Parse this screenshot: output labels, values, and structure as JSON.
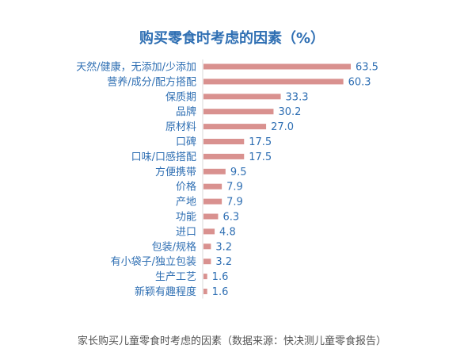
{
  "chart_data": {
    "type": "bar",
    "orientation": "horizontal",
    "title": "购买零食时考虑的因素（%）",
    "categories": [
      "天然/健康，无添加/少添加",
      "营养/成分/配方搭配",
      "保质期",
      "品牌",
      "原材料",
      "口碑",
      "口味/口感搭配",
      "方便携带",
      "价格",
      "产地",
      "功能",
      "进口",
      "包装/规格",
      "有小袋子/独立包装",
      "生产工艺",
      "新颖有趣程度"
    ],
    "values": [
      63.5,
      60.3,
      33.3,
      30.2,
      27.0,
      17.5,
      17.5,
      9.5,
      7.9,
      7.9,
      6.3,
      4.8,
      3.2,
      3.2,
      1.6,
      1.6
    ],
    "value_labels": [
      "63.5",
      "60.3",
      "33.3",
      "30.2",
      "27.0",
      "17.5",
      "17.5",
      "9.5",
      "7.9",
      "7.9",
      "6.3",
      "4.8",
      "3.2",
      "3.2",
      "1.6",
      "1.6"
    ],
    "xlim": [
      0,
      63.5
    ],
    "grid": false,
    "legend": "none",
    "bar_color": "#d9918f",
    "label_color": "#2f6fb3",
    "caption": "家长购买儿童零食时考虑的因素（数据来源：快决测儿童零食报告）"
  }
}
